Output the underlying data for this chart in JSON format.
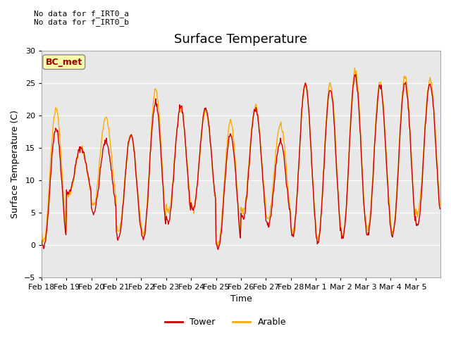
{
  "title": "Surface Temperature",
  "ylabel": "Surface Temperature (C)",
  "xlabel": "Time",
  "ylim": [
    -5,
    30
  ],
  "bg_color": "#e8e8e8",
  "annotation_text": "No data for f_IRT0_a\nNo data for f_IRT0_b",
  "legend_box_label": "BC_met",
  "tower_color": "#cc0000",
  "arable_color": "#ffaa00",
  "x_tick_labels": [
    "Feb 18",
    "Feb 19",
    "Feb 20",
    "Feb 21",
    "Feb 22",
    "Feb 23",
    "Feb 24",
    "Feb 25",
    "Feb 26",
    "Feb 27",
    "Feb 28",
    "Mar 1",
    "Mar 2",
    "Mar 3",
    "Mar 4",
    "Mar 5"
  ],
  "yticks": [
    -5,
    0,
    5,
    10,
    15,
    20,
    25,
    30
  ],
  "tower_high": [
    18,
    15,
    16,
    17,
    22,
    21.5,
    21,
    17,
    21,
    16,
    25,
    24,
    26,
    24.5,
    25,
    25
  ],
  "tower_low": [
    -0.5,
    8,
    5,
    1,
    1,
    3.5,
    5.5,
    -0.5,
    4,
    3,
    1.5,
    0.5,
    1,
    1.5,
    1.5,
    3
  ],
  "arable_high": [
    21,
    15,
    19.5,
    17,
    24,
    21,
    20.5,
    19,
    21.5,
    18.5,
    24.5,
    25,
    27,
    25,
    26,
    25.5
  ],
  "arable_low": [
    0.5,
    7.5,
    6,
    2,
    1.5,
    5,
    5.5,
    0,
    5,
    4,
    2,
    1,
    1.5,
    2.5,
    2,
    4.5
  ]
}
